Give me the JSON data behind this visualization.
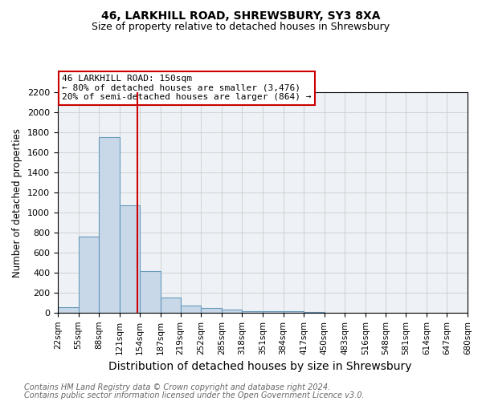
{
  "title1": "46, LARKHILL ROAD, SHREWSBURY, SY3 8XA",
  "title2": "Size of property relative to detached houses in Shrewsbury",
  "xlabel": "Distribution of detached houses by size in Shrewsbury",
  "ylabel": "Number of detached properties",
  "footnote1": "Contains HM Land Registry data © Crown copyright and database right 2024.",
  "footnote2": "Contains public sector information licensed under the Open Government Licence v3.0.",
  "bin_edges": [
    22,
    55,
    88,
    121,
    154,
    187,
    219,
    252,
    285,
    318,
    351,
    384,
    417,
    450,
    483,
    516,
    548,
    581,
    614,
    647,
    680
  ],
  "bar_heights": [
    60,
    760,
    1750,
    1070,
    420,
    155,
    70,
    45,
    30,
    20,
    20,
    15,
    5,
    3,
    2,
    1,
    1,
    0,
    0,
    0
  ],
  "property_size": 150,
  "ylim": [
    0,
    2200
  ],
  "yticks": [
    0,
    200,
    400,
    600,
    800,
    1000,
    1200,
    1400,
    1600,
    1800,
    2000,
    2200
  ],
  "bar_facecolor": "#c8d8e8",
  "bar_edgecolor": "#6699bb",
  "vline_color": "#cc0000",
  "ann_line1": "46 LARKHILL ROAD: 150sqm",
  "ann_line2": "← 80% of detached houses are smaller (3,476)",
  "ann_line3": "20% of semi-detached houses are larger (864) →",
  "annotation_box_color": "#cc0000",
  "grid_color": "#cccccc",
  "bg_color": "#eef2f6",
  "title_fontsize": 10,
  "subtitle_fontsize": 9,
  "tick_label_fontsize": 7.5,
  "ylabel_fontsize": 8.5,
  "xlabel_fontsize": 10,
  "annotation_fontsize": 8,
  "footnote_fontsize": 7
}
